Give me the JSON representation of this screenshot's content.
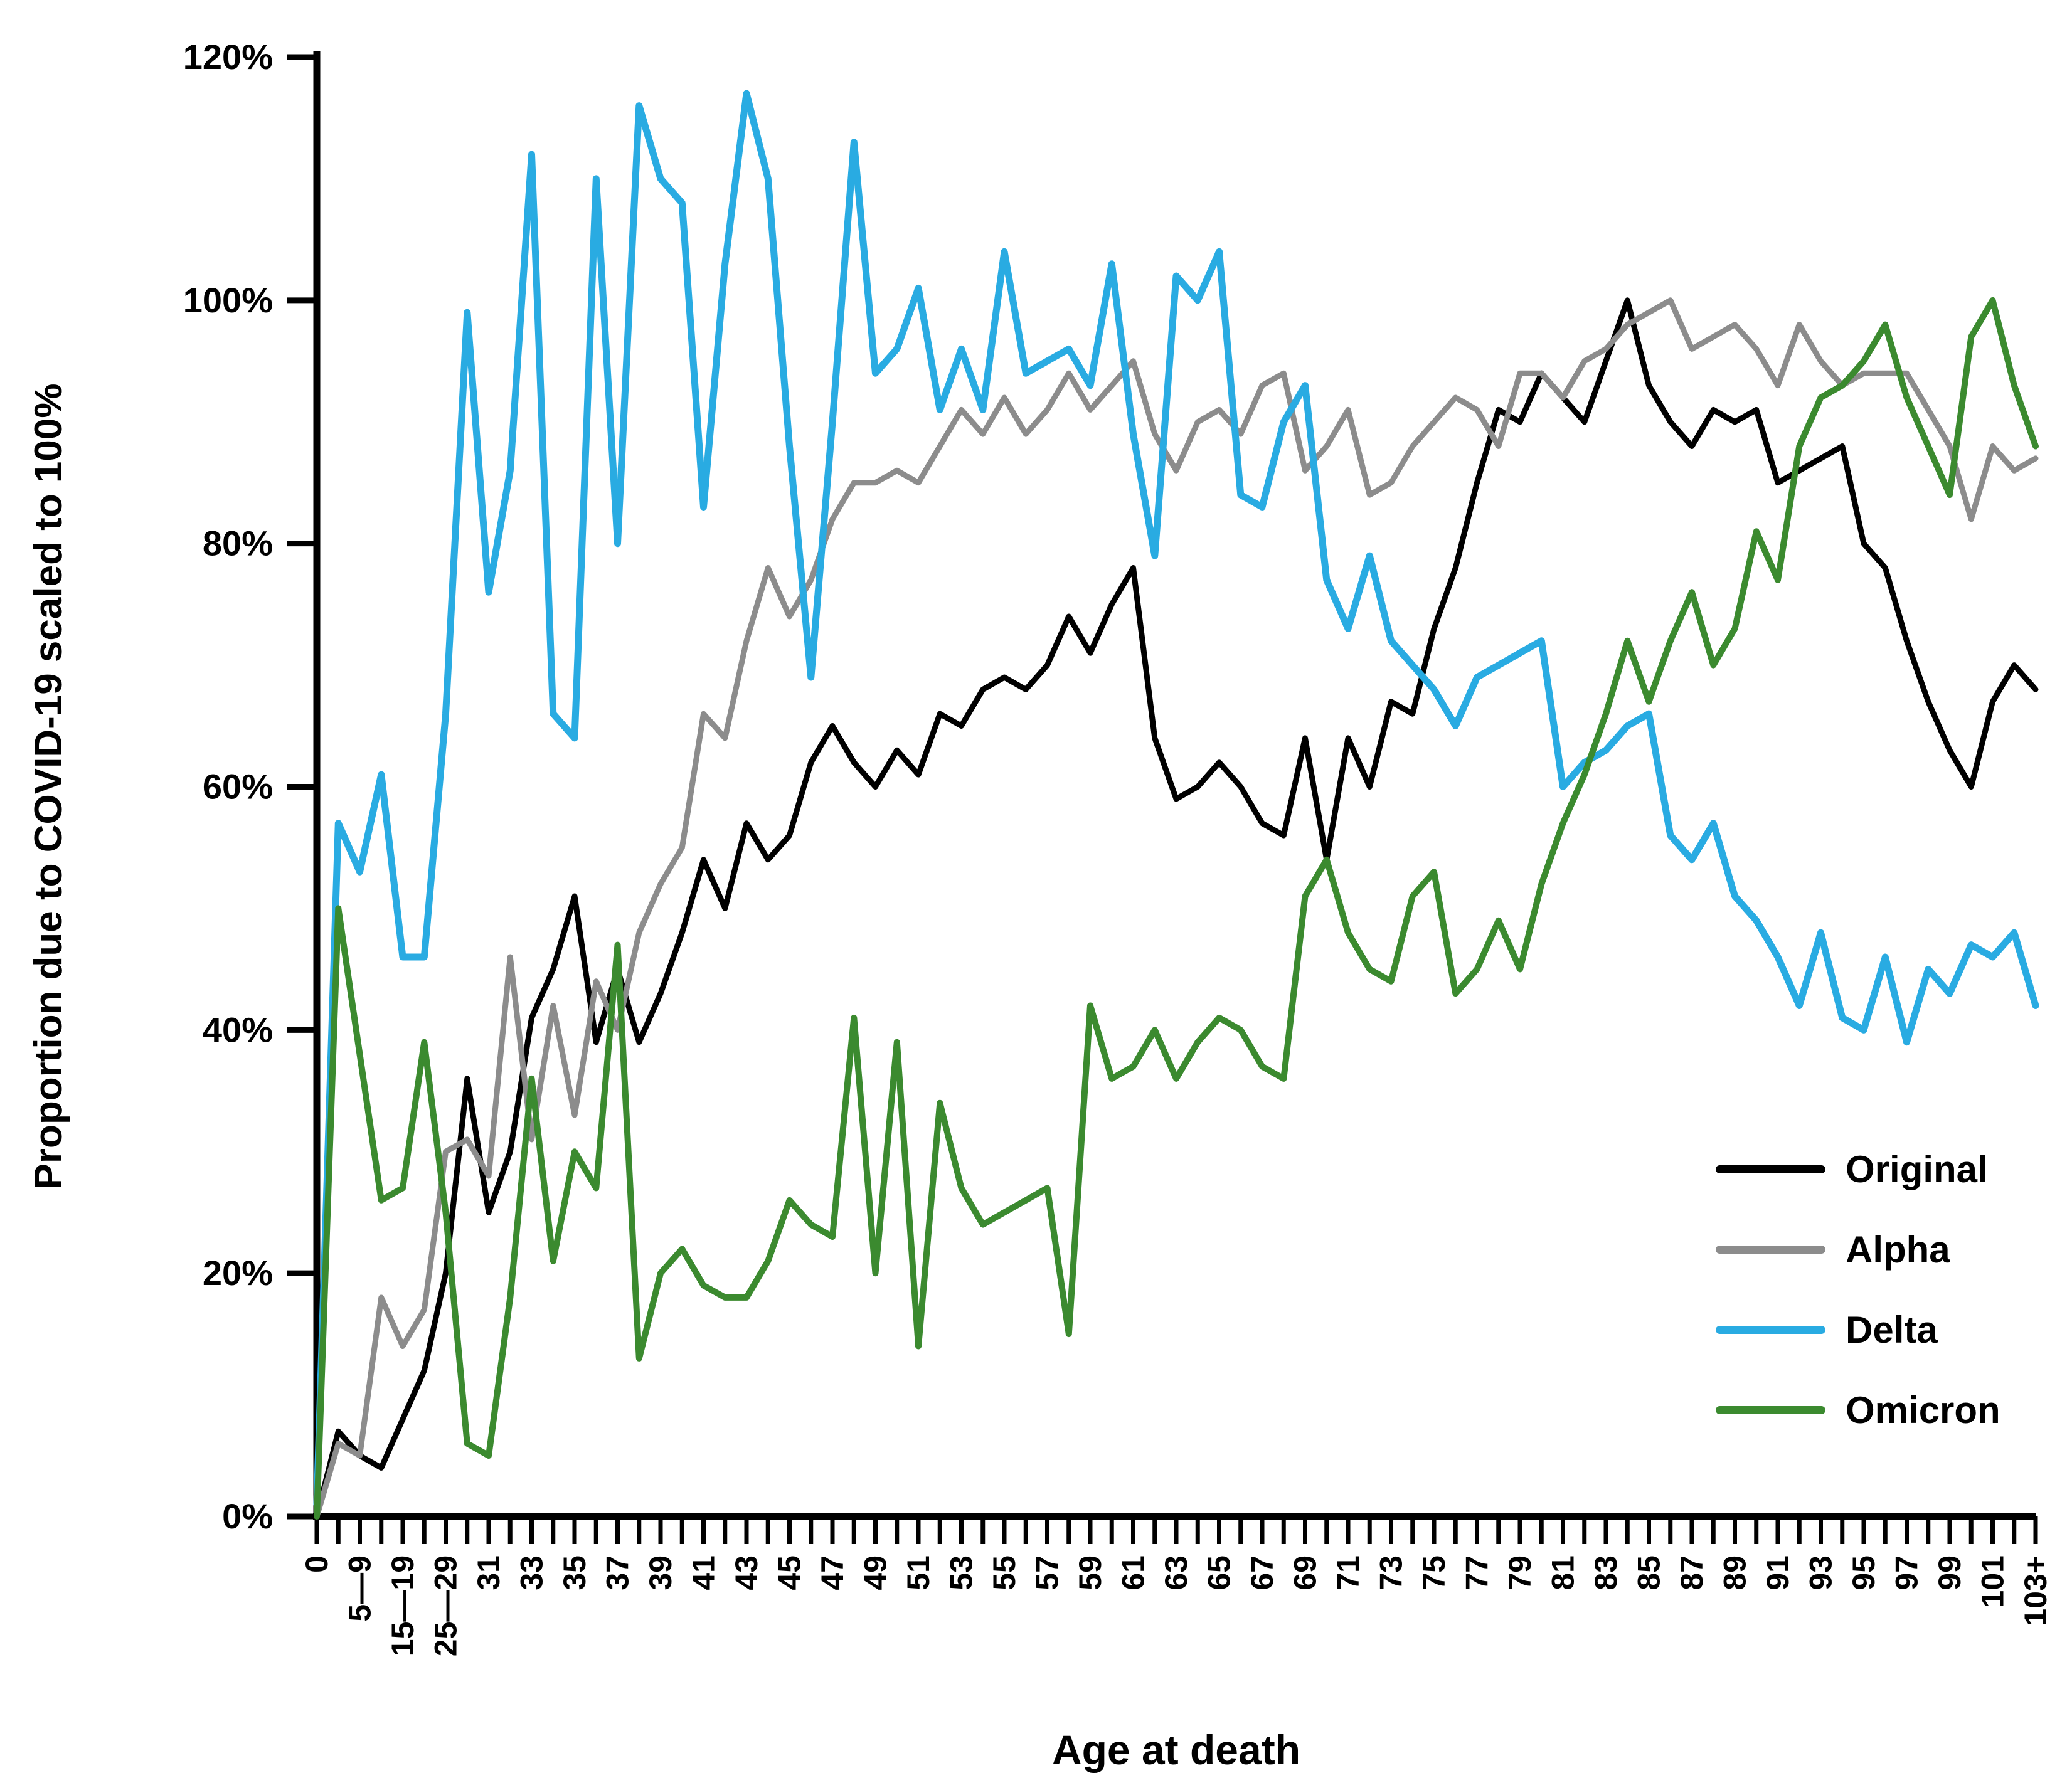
{
  "chart_data": {
    "type": "line",
    "title": "",
    "xlabel": "Age at death",
    "ylabel": "Proportion due to COVID-19 scaled to 100%",
    "ylim": [
      0,
      120
    ],
    "grid": false,
    "legend_position": "inside-right",
    "y_ticks": [
      {
        "value": 0,
        "label": "0%"
      },
      {
        "value": 20,
        "label": "20%"
      },
      {
        "value": 40,
        "label": "40%"
      },
      {
        "value": 60,
        "label": "60%"
      },
      {
        "value": 80,
        "label": "80%"
      },
      {
        "value": 100,
        "label": "100%"
      },
      {
        "value": 120,
        "label": "120%"
      }
    ],
    "x_tick_count": 81,
    "x_label_every": 2,
    "x_labels": [
      "0",
      "5—9",
      "15—19",
      "25—29",
      "31",
      "33",
      "35",
      "37",
      "39",
      "41",
      "43",
      "45",
      "47",
      "49",
      "51",
      "53",
      "55",
      "57",
      "59",
      "61",
      "63",
      "65",
      "67",
      "69",
      "71",
      "73",
      "75",
      "77",
      "79",
      "81",
      "83",
      "85",
      "87",
      "89",
      "91",
      "93",
      "95",
      "97",
      "99",
      "101",
      "103+"
    ],
    "series": [
      {
        "name": "Original",
        "color": "#000000",
        "width": 9,
        "values": [
          0,
          7,
          5,
          4,
          8,
          12,
          20,
          36,
          25,
          30,
          41,
          45,
          51,
          39,
          45,
          39,
          43,
          48,
          54,
          50,
          57,
          54,
          56,
          62,
          65,
          62,
          60,
          63,
          61,
          66,
          65,
          68,
          69,
          68,
          70,
          74,
          71,
          75,
          78,
          64,
          59,
          60,
          62,
          60,
          57,
          56,
          64,
          54,
          64,
          60,
          67,
          66,
          73,
          78,
          85,
          91,
          90,
          94,
          92,
          90,
          95,
          100,
          93,
          90,
          88,
          91,
          90,
          91,
          85,
          86,
          87,
          88,
          80,
          78,
          72,
          67,
          63,
          60,
          67,
          70,
          68
        ]
      },
      {
        "name": "Alpha",
        "color": "#8C8C8C",
        "width": 9,
        "values": [
          0,
          6,
          5,
          18,
          14,
          17,
          30,
          31,
          28,
          46,
          31,
          42,
          33,
          44,
          40,
          48,
          52,
          55,
          66,
          64,
          72,
          78,
          74,
          77,
          82,
          85,
          85,
          86,
          85,
          88,
          91,
          89,
          92,
          89,
          91,
          94,
          91,
          93,
          95,
          89,
          86,
          90,
          91,
          89,
          93,
          94,
          86,
          88,
          91,
          84,
          85,
          88,
          90,
          92,
          91,
          88,
          94,
          94,
          92,
          95,
          96,
          98,
          99,
          100,
          96,
          97,
          98,
          96,
          93,
          98,
          95,
          93,
          94,
          94,
          94,
          91,
          88,
          82,
          88,
          86,
          87
        ]
      },
      {
        "name": "Delta",
        "color": "#29ABE2",
        "width": 11,
        "values": [
          1,
          57,
          53,
          61,
          46,
          46,
          66,
          99,
          76,
          86,
          112,
          66,
          64,
          110,
          80,
          116,
          110,
          108,
          83,
          103,
          117,
          110,
          88,
          69,
          90,
          113,
          94,
          96,
          101,
          91,
          96,
          91,
          104,
          94,
          95,
          96,
          93,
          103,
          89,
          79,
          102,
          100,
          104,
          84,
          83,
          90,
          93,
          77,
          73,
          79,
          72,
          70,
          68,
          65,
          69,
          70,
          71,
          72,
          60,
          62,
          63,
          65,
          66,
          56,
          54,
          57,
          51,
          49,
          46,
          42,
          48,
          41,
          40,
          46,
          39,
          45,
          43,
          47,
          46,
          48,
          42
        ]
      },
      {
        "name": "Omicron",
        "color": "#3B8A2F",
        "width": 10,
        "values": [
          0,
          50,
          38,
          26,
          27,
          39,
          25,
          6,
          5,
          18,
          36,
          21,
          30,
          27,
          47,
          13,
          20,
          22,
          19,
          18,
          18,
          21,
          26,
          24,
          23,
          41,
          20,
          39,
          14,
          34,
          27,
          24,
          25,
          26,
          27,
          15,
          42,
          36,
          37,
          40,
          36,
          39,
          41,
          40,
          37,
          36,
          51,
          54,
          48,
          45,
          44,
          51,
          53,
          43,
          45,
          49,
          45,
          52,
          57,
          61,
          66,
          72,
          67,
          72,
          76,
          70,
          73,
          81,
          77,
          88,
          92,
          93,
          95,
          98,
          92,
          88,
          84,
          97,
          100,
          93,
          88
        ]
      }
    ]
  }
}
